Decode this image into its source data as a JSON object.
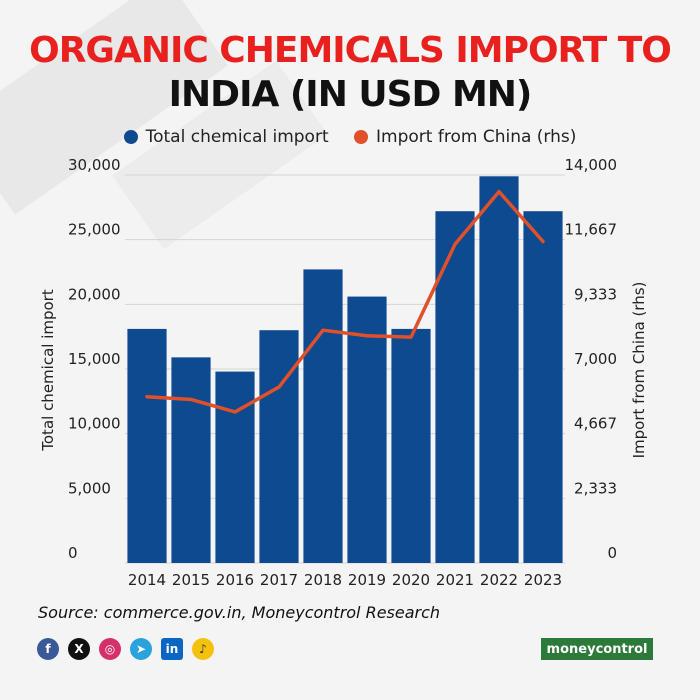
{
  "title_line1": "ORGANIC CHEMICALS IMPORT TO",
  "title_line2": "INDIA (IN USD MN)",
  "legend": {
    "total_label": "Total chemical import",
    "china_label": "Import from China (rhs)"
  },
  "colors": {
    "title_red": "#e8201e",
    "bar": "#0d4a8f",
    "line": "#e0502a"
  },
  "chart_data": {
    "type": "bar",
    "categories": [
      "2014",
      "2015",
      "2016",
      "2017",
      "2018",
      "2019",
      "2020",
      "2021",
      "2022",
      "2023"
    ],
    "series": [
      {
        "name": "Total chemical import",
        "type": "bar",
        "axis": "left",
        "values": [
          18100,
          15900,
          14800,
          18000,
          22700,
          20600,
          18100,
          27200,
          29900,
          27200
        ]
      },
      {
        "name": "Import from China (rhs)",
        "type": "line",
        "axis": "right",
        "values": [
          6000,
          5900,
          5450,
          6350,
          8400,
          8200,
          8150,
          11500,
          13400,
          11600
        ]
      }
    ],
    "ylabel": "Total chemical import",
    "y2label": "Import from China (rhs)",
    "ylim": [
      0,
      30000
    ],
    "y2lim": [
      0,
      14000
    ],
    "yticks": [
      "0",
      "5,000",
      "10,000",
      "15,000",
      "20,000",
      "25,000",
      "30,000"
    ],
    "y2ticks": [
      "0",
      "2,333",
      "4,667",
      "7,000",
      "9,333",
      "11,667",
      "14,000"
    ],
    "grid": true,
    "legend_position": "top"
  },
  "source": "Source: commerce.gov.in, Moneycontrol Research",
  "socials": [
    "f",
    "X",
    "◎",
    "➤",
    "in",
    "♪"
  ],
  "brand": {
    "part1": "money",
    "part2": "control"
  }
}
